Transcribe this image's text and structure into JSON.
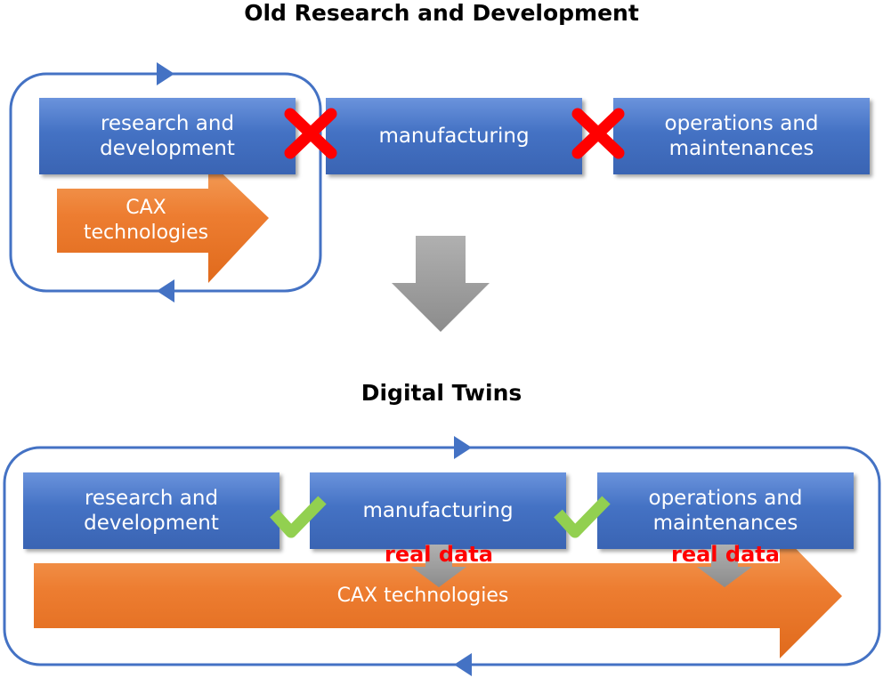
{
  "top": {
    "title": "Old Research and Development",
    "boxes": [
      "research and development",
      "manufacturing",
      "operations and maintenances"
    ],
    "cax_label": "CAX technologies"
  },
  "bottom": {
    "title": "Digital Twins",
    "boxes": [
      "research and development",
      "manufacturing",
      "operations and maintenances"
    ],
    "cax_label": "CAX technologies",
    "real_data_label": "real data"
  },
  "colors": {
    "box_blue": "#4472c4",
    "cycle_blue": "#4472c4",
    "cax_orange": "#ed7d31",
    "cross_red": "#ff0000",
    "check_green": "#92d050",
    "down_arrow_gray": "#a6a6a6",
    "real_data_red": "#ff0000"
  }
}
